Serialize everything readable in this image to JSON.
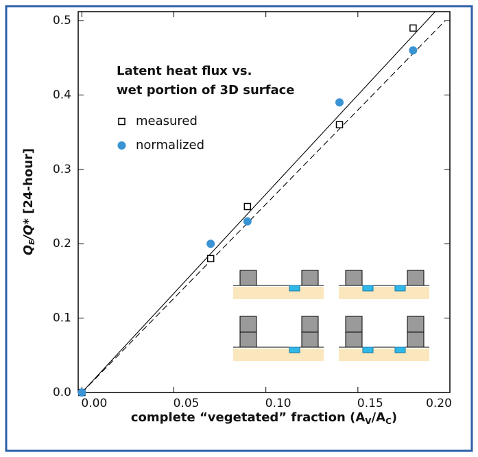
{
  "chart_data": {
    "type": "scatter",
    "legend_title": [
      "Latent heat flux vs.",
      "wet portion of 3D surface"
    ],
    "xlabel_parts": [
      "complete “vegetated” fraction (A",
      "V",
      "/A",
      "C",
      ")"
    ],
    "ylabel_parts": [
      "Q",
      "E",
      "/Q*",
      " [24-hour]"
    ],
    "xlim": [
      -0.002,
      0.2
    ],
    "ylim": [
      0,
      0.512
    ],
    "xticks": [
      {
        "value": 0,
        "label": "0.00"
      },
      0.05,
      {
        "value": 0.1,
        "label": "0.10"
      },
      0.15,
      {
        "value": 0.2,
        "label": "0.20"
      }
    ],
    "yticks": [
      {
        "value": 0,
        "label": "0.0"
      },
      0.1,
      0.2,
      0.3,
      0.4,
      0.5
    ],
    "series": [
      {
        "name": "measured",
        "color": "#000000",
        "marker": "square",
        "x": [
          0,
          0.07,
          0.09,
          0.14,
          0.18
        ],
        "values": [
          0,
          0.18,
          0.25,
          0.36,
          0.49
        ]
      },
      {
        "name": "normalized",
        "color": "#3a93d2",
        "marker": "circle",
        "x": [
          0,
          0.07,
          0.09,
          0.14,
          0.18
        ],
        "values": [
          0,
          0.2,
          0.23,
          0.39,
          0.46
        ]
      }
    ],
    "fit_lines": [
      {
        "style": "solid",
        "x": [
          0,
          0.192
        ],
        "values": [
          0,
          0.512
        ]
      },
      {
        "style": "dashed",
        "x": [
          0,
          0.1975
        ],
        "values": [
          0,
          0.5
        ]
      }
    ]
  }
}
